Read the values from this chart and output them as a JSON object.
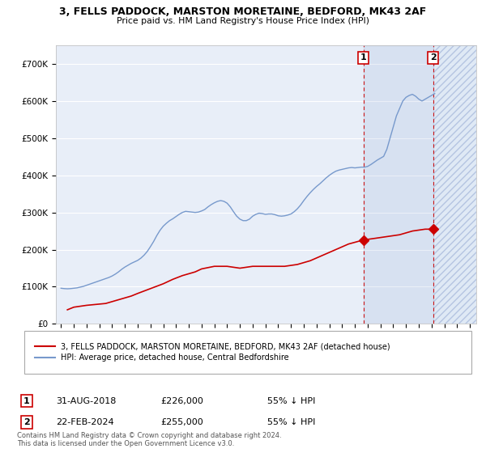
{
  "title": "3, FELLS PADDOCK, MARSTON MORETAINE, BEDFORD, MK43 2AF",
  "subtitle": "Price paid vs. HM Land Registry's House Price Index (HPI)",
  "background_color": "#ffffff",
  "plot_bg_color": "#e8eef8",
  "grid_color": "#ffffff",
  "hpi_line_color": "#7799cc",
  "price_line_color": "#cc0000",
  "sale_marker_color": "#cc0000",
  "annotation_border": "#cc0000",
  "ylim": [
    0,
    750000
  ],
  "yticks": [
    0,
    100000,
    200000,
    300000,
    400000,
    500000,
    600000,
    700000
  ],
  "ytick_labels": [
    "£0",
    "£100K",
    "£200K",
    "£300K",
    "£400K",
    "£500K",
    "£600K",
    "£700K"
  ],
  "sale1_date": "31-AUG-2018",
  "sale1_price": 226000,
  "sale1_pct": "55%",
  "sale2_date": "22-FEB-2024",
  "sale2_price": 255000,
  "sale2_pct": "55%",
  "legend_label_red": "3, FELLS PADDOCK, MARSTON MORETAINE, BEDFORD, MK43 2AF (detached house)",
  "legend_label_blue": "HPI: Average price, detached house, Central Bedfordshire",
  "footnote": "Contains HM Land Registry data © Crown copyright and database right 2024.\nThis data is licensed under the Open Government Licence v3.0.",
  "hpi_years": [
    1995.0,
    1995.25,
    1995.5,
    1995.75,
    1996.0,
    1996.25,
    1996.5,
    1996.75,
    1997.0,
    1997.25,
    1997.5,
    1997.75,
    1998.0,
    1998.25,
    1998.5,
    1998.75,
    1999.0,
    1999.25,
    1999.5,
    1999.75,
    2000.0,
    2000.25,
    2000.5,
    2000.75,
    2001.0,
    2001.25,
    2001.5,
    2001.75,
    2002.0,
    2002.25,
    2002.5,
    2002.75,
    2003.0,
    2003.25,
    2003.5,
    2003.75,
    2004.0,
    2004.25,
    2004.5,
    2004.75,
    2005.0,
    2005.25,
    2005.5,
    2005.75,
    2006.0,
    2006.25,
    2006.5,
    2006.75,
    2007.0,
    2007.25,
    2007.5,
    2007.75,
    2008.0,
    2008.25,
    2008.5,
    2008.75,
    2009.0,
    2009.25,
    2009.5,
    2009.75,
    2010.0,
    2010.25,
    2010.5,
    2010.75,
    2011.0,
    2011.25,
    2011.5,
    2011.75,
    2012.0,
    2012.25,
    2012.5,
    2012.75,
    2013.0,
    2013.25,
    2013.5,
    2013.75,
    2014.0,
    2014.25,
    2014.5,
    2014.75,
    2015.0,
    2015.25,
    2015.5,
    2015.75,
    2016.0,
    2016.25,
    2016.5,
    2016.75,
    2017.0,
    2017.25,
    2017.5,
    2017.75,
    2018.0,
    2018.25,
    2018.5,
    2018.75,
    2019.0,
    2019.25,
    2019.5,
    2019.75,
    2020.0,
    2020.25,
    2020.5,
    2020.75,
    2021.0,
    2021.25,
    2021.5,
    2021.75,
    2022.0,
    2022.25,
    2022.5,
    2022.75,
    2023.0,
    2023.25,
    2023.5,
    2023.75,
    2024.0,
    2024.25
  ],
  "hpi_values": [
    96000,
    95000,
    94500,
    95000,
    96000,
    97000,
    99000,
    101000,
    104000,
    107000,
    110000,
    113000,
    116000,
    119000,
    122000,
    125000,
    129000,
    134000,
    140000,
    147000,
    153000,
    158000,
    163000,
    167000,
    171000,
    177000,
    185000,
    195000,
    208000,
    222000,
    238000,
    252000,
    263000,
    271000,
    278000,
    283000,
    289000,
    295000,
    300000,
    303000,
    302000,
    301000,
    300000,
    301000,
    304000,
    308000,
    315000,
    321000,
    326000,
    330000,
    332000,
    330000,
    325000,
    315000,
    302000,
    290000,
    282000,
    278000,
    278000,
    282000,
    290000,
    295000,
    298000,
    297000,
    295000,
    296000,
    296000,
    294000,
    291000,
    290000,
    291000,
    293000,
    296000,
    302000,
    310000,
    320000,
    332000,
    343000,
    353000,
    362000,
    370000,
    377000,
    385000,
    393000,
    400000,
    406000,
    411000,
    414000,
    416000,
    418000,
    420000,
    421000,
    420000,
    421000,
    422000,
    422000,
    424000,
    429000,
    435000,
    441000,
    446000,
    451000,
    470000,
    500000,
    530000,
    560000,
    580000,
    600000,
    610000,
    615000,
    618000,
    613000,
    605000,
    600000,
    605000,
    610000,
    615000,
    620000
  ],
  "price_years": [
    1995.5,
    1996.0,
    1997.0,
    1998.5,
    1999.5,
    2000.5,
    2001.0,
    2002.0,
    2003.0,
    2003.75,
    2004.5,
    2005.5,
    2006.0,
    2007.0,
    2008.0,
    2009.0,
    2010.0,
    2011.0,
    2012.5,
    2013.5,
    2014.5,
    2015.5,
    2016.5,
    2017.5,
    2018.67,
    2019.5,
    2020.5,
    2021.5,
    2022.5,
    2023.5,
    2024.12
  ],
  "price_values": [
    38000,
    45000,
    50000,
    55000,
    65000,
    75000,
    82000,
    95000,
    108000,
    120000,
    130000,
    140000,
    148000,
    155000,
    155000,
    150000,
    155000,
    155000,
    155000,
    160000,
    170000,
    185000,
    200000,
    215000,
    226000,
    230000,
    235000,
    240000,
    250000,
    255000,
    255000
  ],
  "sale1_x": 2018.67,
  "sale1_y": 226000,
  "sale2_x": 2024.12,
  "sale2_y": 255000,
  "vline1_x": 2018.67,
  "vline2_x": 2024.12,
  "shade_between_start": 2018.67,
  "shade_between_end": 2024.12,
  "shade_hatch_start": 2024.12,
  "shade_hatch_end": 2027.5,
  "xlim_start": 1994.6,
  "xlim_end": 2027.5
}
